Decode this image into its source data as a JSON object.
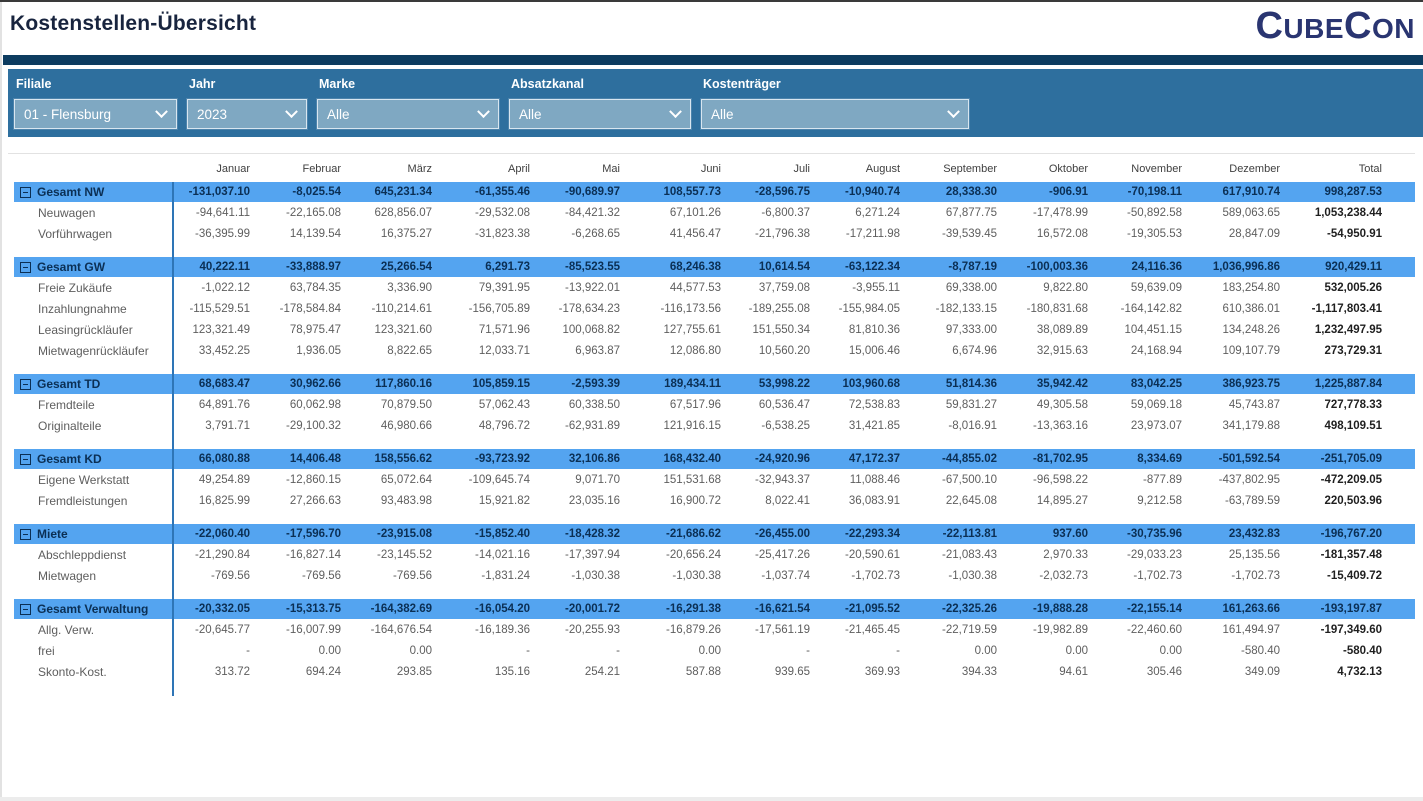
{
  "title": "Kostenstellen-Übersicht",
  "logo": {
    "seg1": "C",
    "seg2": "UBE",
    "seg3": "C",
    "seg4": "ON"
  },
  "filters": {
    "filiale": {
      "label": "Filiale",
      "value": "01 - Flensburg"
    },
    "jahr": {
      "label": "Jahr",
      "value": "2023"
    },
    "marke": {
      "label": "Marke",
      "value": "Alle"
    },
    "absatzkanal": {
      "label": "Absatzkanal",
      "value": "Alle"
    },
    "kostentraeger": {
      "label": "Kostenträger",
      "value": "Alle"
    }
  },
  "colors": {
    "band": "#2E6F9E",
    "navy_bar": "#0D3C60",
    "group_row": "#54A4F0",
    "group_text": "#0B2F54",
    "dropdown_fill": "#7FA8C2",
    "logo": "#2A3571",
    "accent_line": "#2E75B6"
  },
  "table": {
    "columns": [
      "Januar",
      "Februar",
      "März",
      "April",
      "Mai",
      "Juni",
      "Juli",
      "August",
      "September",
      "Oktober",
      "November",
      "Dezember",
      "Total"
    ],
    "groups": [
      {
        "label": "Gesamt NW",
        "values": [
          "-131,037.10",
          "-8,025.54",
          "645,231.34",
          "-61,355.46",
          "-90,689.97",
          "108,557.73",
          "-28,596.75",
          "-10,940.74",
          "28,338.30",
          "-906.91",
          "-70,198.11",
          "617,910.74",
          "998,287.53"
        ],
        "children": [
          {
            "label": "Neuwagen",
            "values": [
              "-94,641.11",
              "-22,165.08",
              "628,856.07",
              "-29,532.08",
              "-84,421.32",
              "67,101.26",
              "-6,800.37",
              "6,271.24",
              "67,877.75",
              "-17,478.99",
              "-50,892.58",
              "589,063.65",
              "1,053,238.44"
            ]
          },
          {
            "label": "Vorführwagen",
            "values": [
              "-36,395.99",
              "14,139.54",
              "16,375.27",
              "-31,823.38",
              "-6,268.65",
              "41,456.47",
              "-21,796.38",
              "-17,211.98",
              "-39,539.45",
              "16,572.08",
              "-19,305.53",
              "28,847.09",
              "-54,950.91"
            ]
          }
        ]
      },
      {
        "label": "Gesamt GW",
        "values": [
          "40,222.11",
          "-33,888.97",
          "25,266.54",
          "6,291.73",
          "-85,523.55",
          "68,246.38",
          "10,614.54",
          "-63,122.34",
          "-8,787.19",
          "-100,003.36",
          "24,116.36",
          "1,036,996.86",
          "920,429.11"
        ],
        "children": [
          {
            "label": "Freie Zukäufe",
            "values": [
              "-1,022.12",
              "63,784.35",
              "3,336.90",
              "79,391.95",
              "-13,922.01",
              "44,577.53",
              "37,759.08",
              "-3,955.11",
              "69,338.00",
              "9,822.80",
              "59,639.09",
              "183,254.80",
              "532,005.26"
            ]
          },
          {
            "label": "Inzahlungnahme",
            "values": [
              "-115,529.51",
              "-178,584.84",
              "-110,214.61",
              "-156,705.89",
              "-178,634.23",
              "-116,173.56",
              "-189,255.08",
              "-155,984.05",
              "-182,133.15",
              "-180,831.68",
              "-164,142.82",
              "610,386.01",
              "-1,117,803.41"
            ]
          },
          {
            "label": "Leasingrückläufer",
            "values": [
              "123,321.49",
              "78,975.47",
              "123,321.60",
              "71,571.96",
              "100,068.82",
              "127,755.61",
              "151,550.34",
              "81,810.36",
              "97,333.00",
              "38,089.89",
              "104,451.15",
              "134,248.26",
              "1,232,497.95"
            ]
          },
          {
            "label": "Mietwagenrückläufer",
            "values": [
              "33,452.25",
              "1,936.05",
              "8,822.65",
              "12,033.71",
              "6,963.87",
              "12,086.80",
              "10,560.20",
              "15,006.46",
              "6,674.96",
              "32,915.63",
              "24,168.94",
              "109,107.79",
              "273,729.31"
            ]
          }
        ]
      },
      {
        "label": "Gesamt TD",
        "values": [
          "68,683.47",
          "30,962.66",
          "117,860.16",
          "105,859.15",
          "-2,593.39",
          "189,434.11",
          "53,998.22",
          "103,960.68",
          "51,814.36",
          "35,942.42",
          "83,042.25",
          "386,923.75",
          "1,225,887.84"
        ],
        "children": [
          {
            "label": "Fremdteile",
            "values": [
              "64,891.76",
              "60,062.98",
              "70,879.50",
              "57,062.43",
              "60,338.50",
              "67,517.96",
              "60,536.47",
              "72,538.83",
              "59,831.27",
              "49,305.58",
              "59,069.18",
              "45,743.87",
              "727,778.33"
            ]
          },
          {
            "label": "Originalteile",
            "values": [
              "3,791.71",
              "-29,100.32",
              "46,980.66",
              "48,796.72",
              "-62,931.89",
              "121,916.15",
              "-6,538.25",
              "31,421.85",
              "-8,016.91",
              "-13,363.16",
              "23,973.07",
              "341,179.88",
              "498,109.51"
            ]
          }
        ]
      },
      {
        "label": "Gesamt KD",
        "values": [
          "66,080.88",
          "14,406.48",
          "158,556.62",
          "-93,723.92",
          "32,106.86",
          "168,432.40",
          "-24,920.96",
          "47,172.37",
          "-44,855.02",
          "-81,702.95",
          "8,334.69",
          "-501,592.54",
          "-251,705.09"
        ],
        "children": [
          {
            "label": "Eigene Werkstatt",
            "values": [
              "49,254.89",
              "-12,860.15",
              "65,072.64",
              "-109,645.74",
              "9,071.70",
              "151,531.68",
              "-32,943.37",
              "11,088.46",
              "-67,500.10",
              "-96,598.22",
              "-877.89",
              "-437,802.95",
              "-472,209.05"
            ]
          },
          {
            "label": "Fremdleistungen",
            "values": [
              "16,825.99",
              "27,266.63",
              "93,483.98",
              "15,921.82",
              "23,035.16",
              "16,900.72",
              "8,022.41",
              "36,083.91",
              "22,645.08",
              "14,895.27",
              "9,212.58",
              "-63,789.59",
              "220,503.96"
            ]
          }
        ]
      },
      {
        "label": "Miete",
        "values": [
          "-22,060.40",
          "-17,596.70",
          "-23,915.08",
          "-15,852.40",
          "-18,428.32",
          "-21,686.62",
          "-26,455.00",
          "-22,293.34",
          "-22,113.81",
          "937.60",
          "-30,735.96",
          "23,432.83",
          "-196,767.20"
        ],
        "children": [
          {
            "label": "Abschleppdienst",
            "values": [
              "-21,290.84",
              "-16,827.14",
              "-23,145.52",
              "-14,021.16",
              "-17,397.94",
              "-20,656.24",
              "-25,417.26",
              "-20,590.61",
              "-21,083.43",
              "2,970.33",
              "-29,033.23",
              "25,135.56",
              "-181,357.48"
            ]
          },
          {
            "label": "Mietwagen",
            "values": [
              "-769.56",
              "-769.56",
              "-769.56",
              "-1,831.24",
              "-1,030.38",
              "-1,030.38",
              "-1,037.74",
              "-1,702.73",
              "-1,030.38",
              "-2,032.73",
              "-1,702.73",
              "-1,702.73",
              "-15,409.72"
            ]
          }
        ]
      },
      {
        "label": "Gesamt Verwaltung",
        "values": [
          "-20,332.05",
          "-15,313.75",
          "-164,382.69",
          "-16,054.20",
          "-20,001.72",
          "-16,291.38",
          "-16,621.54",
          "-21,095.52",
          "-22,325.26",
          "-19,888.28",
          "-22,155.14",
          "161,263.66",
          "-193,197.87"
        ],
        "children": [
          {
            "label": "Allg. Verw.",
            "values": [
              "-20,645.77",
              "-16,007.99",
              "-164,676.54",
              "-16,189.36",
              "-20,255.93",
              "-16,879.26",
              "-17,561.19",
              "-21,465.45",
              "-22,719.59",
              "-19,982.89",
              "-22,460.60",
              "161,494.97",
              "-197,349.60"
            ]
          },
          {
            "label": "frei",
            "values": [
              "-",
              "0.00",
              "0.00",
              "-",
              "-",
              "0.00",
              "-",
              "-",
              "0.00",
              "0.00",
              "0.00",
              "-580.40",
              "-580.40"
            ]
          },
          {
            "label": "Skonto-Kost.",
            "values": [
              "313.72",
              "694.24",
              "293.85",
              "135.16",
              "254.21",
              "587.88",
              "939.65",
              "369.93",
              "394.33",
              "94.61",
              "305.46",
              "349.09",
              "4,732.13"
            ]
          }
        ]
      }
    ]
  }
}
